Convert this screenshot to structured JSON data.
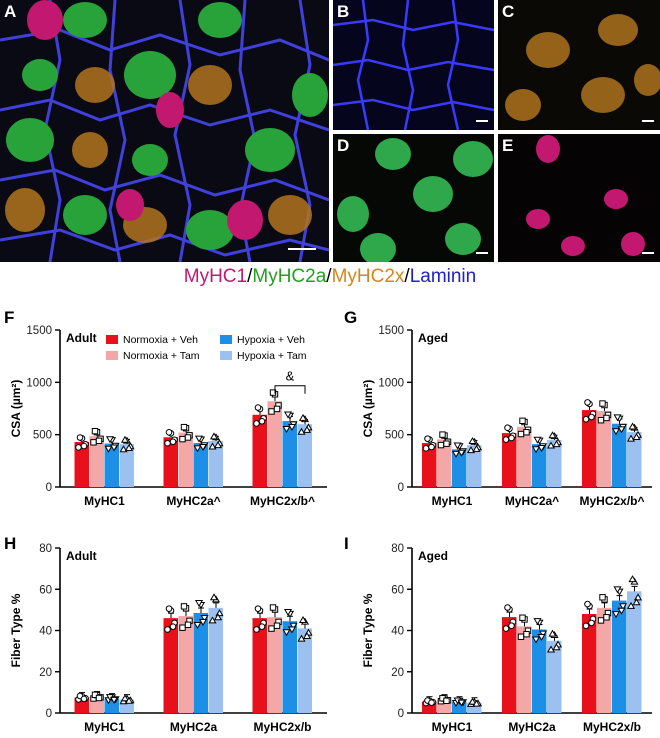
{
  "panels": {
    "A": "A",
    "B": "B",
    "C": "C",
    "D": "D",
    "E": "E"
  },
  "stain_legend": {
    "parts": [
      {
        "text": "MyHC1",
        "color": "#c2186f"
      },
      {
        "text": "/",
        "color": "#000000"
      },
      {
        "text": "MyHC2a",
        "color": "#22a022"
      },
      {
        "text": "/",
        "color": "#000000"
      },
      {
        "text": "MyHC2x",
        "color": "#d4861a"
      },
      {
        "text": "/",
        "color": "#000000"
      },
      {
        "text": "Laminin",
        "color": "#2020c8"
      }
    ]
  },
  "colors": {
    "normoxia_veh": "#e8101a",
    "normoxia_tam": "#f3a7a7",
    "hypoxia_veh": "#1e8fe6",
    "hypoxia_tam": "#9cc1f0"
  },
  "chart_data": [
    {
      "panel": "F",
      "type": "bar",
      "title": "Adult",
      "ylabel": "CSA (µm²)",
      "ylim": [
        0,
        1500
      ],
      "yticks": [
        "0",
        "500",
        "1000",
        "1500"
      ],
      "categories": [
        "MyHC1",
        "MyHC2a^",
        "MyHC2x/b^"
      ],
      "annotation": "&",
      "series": [
        {
          "name": "Normoxia + Veh",
          "values": [
            430,
            475,
            690
          ]
        },
        {
          "name": "Normoxia + Tam",
          "values": [
            485,
            520,
            820
          ]
        },
        {
          "name": "Hypoxia + Veh",
          "values": [
            415,
            420,
            630
          ]
        },
        {
          "name": "Hypoxia + Tam",
          "values": [
            410,
            440,
            600
          ]
        }
      ]
    },
    {
      "panel": "G",
      "type": "bar",
      "title": "Aged",
      "ylabel": "CSA (µm²)",
      "ylim": [
        0,
        1500
      ],
      "yticks": [
        "0",
        "500",
        "1000",
        "1500"
      ],
      "categories": [
        "MyHC1",
        "MyHC2a^",
        "MyHC2x/b^"
      ],
      "series": [
        {
          "name": "Normoxia + Veh",
          "values": [
            420,
            515,
            735
          ]
        },
        {
          "name": "Normoxia + Tam",
          "values": [
            455,
            575,
            725
          ]
        },
        {
          "name": "Hypoxia + Veh",
          "values": [
            360,
            410,
            605
          ]
        },
        {
          "name": "Hypoxia + Tam",
          "values": [
            400,
            450,
            525
          ]
        }
      ]
    },
    {
      "panel": "H",
      "type": "bar",
      "title": "Adult",
      "ylabel": "Fiber Type %",
      "ylim": [
        0,
        80
      ],
      "yticks": [
        "0",
        "20",
        "40",
        "60",
        "80"
      ],
      "categories": [
        "MyHC1",
        "MyHC2a",
        "MyHC2x/b"
      ],
      "series": [
        {
          "name": "Normoxia + Veh",
          "values": [
            7.5,
            46,
            46
          ]
        },
        {
          "name": "Normoxia + Tam",
          "values": [
            8,
            47,
            46.5
          ]
        },
        {
          "name": "Hypoxia + Veh",
          "values": [
            7,
            48.5,
            44.5
          ]
        },
        {
          "name": "Hypoxia + Tam",
          "values": [
            6.5,
            51,
            41
          ]
        }
      ]
    },
    {
      "panel": "I",
      "type": "bar",
      "title": "Aged",
      "ylabel": "Fiber Type %",
      "ylim": [
        0,
        80
      ],
      "yticks": [
        "0",
        "20",
        "40",
        "60",
        "80"
      ],
      "categories": [
        "MyHC1",
        "MyHC2a",
        "MyHC2x/b"
      ],
      "series": [
        {
          "name": "Normoxia + Veh",
          "values": [
            5.5,
            46.5,
            48
          ]
        },
        {
          "name": "Normoxia + Tam",
          "values": [
            6.5,
            42,
            51
          ]
        },
        {
          "name": "Hypoxia + Veh",
          "values": [
            5.5,
            40.5,
            54.5
          ]
        },
        {
          "name": "Hypoxia + Tam",
          "values": [
            5,
            35,
            59
          ]
        }
      ]
    }
  ]
}
